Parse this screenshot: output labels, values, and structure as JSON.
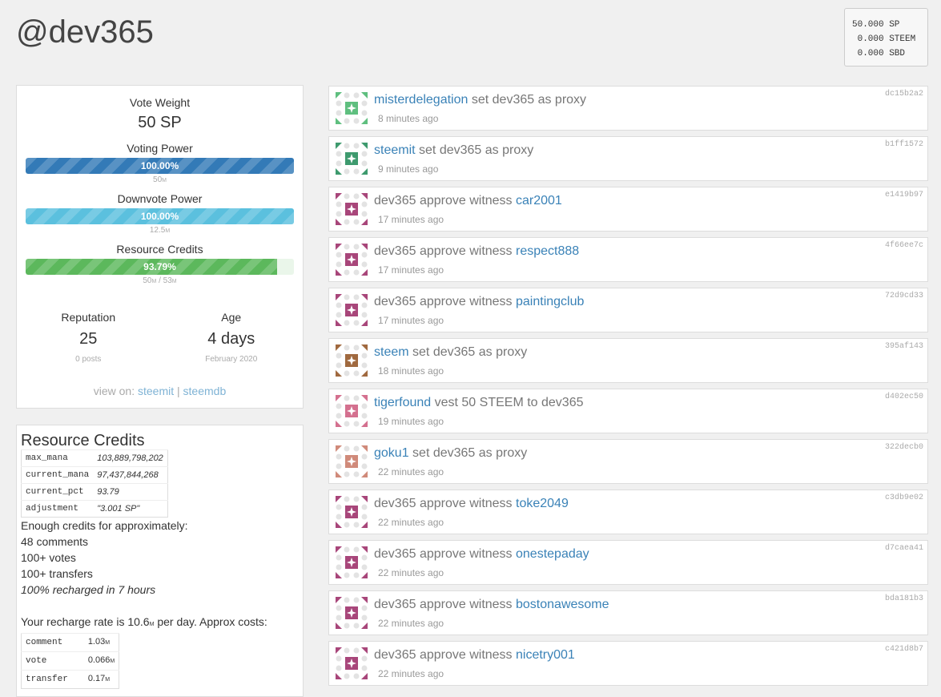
{
  "header": {
    "title": "@dev365",
    "balances": [
      "50.000 SP",
      " 0.000 STEEM",
      " 0.000 SBD"
    ]
  },
  "account": {
    "vote_weight": {
      "label": "Vote Weight",
      "value": "50 SP"
    },
    "bars": [
      {
        "label": "Voting Power",
        "value": 100,
        "value_label": "100.00%",
        "color": "#337ab7",
        "note": [
          "50",
          "M"
        ]
      },
      {
        "label": "Downvote Power",
        "value": 100,
        "value_label": "100.00%",
        "color": "#5bc0de",
        "note": [
          "12.5",
          "M"
        ]
      },
      {
        "label": "Resource Credits",
        "value": 93.79,
        "value_label": "93.79%",
        "color": "#5cb85c",
        "note": [
          "50",
          "M",
          " / 53",
          "M"
        ]
      }
    ],
    "stats": [
      {
        "label": "Reputation",
        "value": "25",
        "sub": "0 posts"
      },
      {
        "label": "Age",
        "value": "4 days",
        "sub": "February 2020"
      }
    ],
    "view_on": {
      "prefix": "view on:",
      "links": [
        "steemit",
        "steemdb"
      ],
      "separator": "|"
    }
  },
  "resource_credits": {
    "title": "Resource Credits",
    "table": [
      [
        "max_mana",
        "103,889,798,202"
      ],
      [
        "current_mana",
        "97,437,844,268"
      ],
      [
        "current_pct",
        "93.79"
      ],
      [
        "adjustment",
        "\"3.001 SP\""
      ]
    ],
    "intro": "Enough credits for approximately:",
    "lines": [
      "48 comments",
      "100+ votes",
      "100+ transfers"
    ],
    "recharge": "100% recharged in 7 hours",
    "rate": [
      "Your recharge rate is 10.6",
      "M",
      " per day. Approx costs:"
    ],
    "costs": [
      [
        "comment",
        "1.03",
        "M"
      ],
      [
        "vote",
        "0.066",
        "M"
      ],
      [
        "transfer",
        "0.17",
        "M"
      ]
    ]
  },
  "feed": [
    {
      "parts": [
        {
          "text": "misterdelegation",
          "link": true
        },
        {
          "text": " set dev365 as proxy"
        }
      ],
      "time": "8 minutes ago",
      "hash": "dc15b2a2",
      "icon_color": "#5fbf7f"
    },
    {
      "parts": [
        {
          "text": "steemit",
          "link": true
        },
        {
          "text": " set dev365 as proxy"
        }
      ],
      "time": "9 minutes ago",
      "hash": "b1ff1572",
      "icon_color": "#3e9a6e"
    },
    {
      "parts": [
        {
          "text": "dev365 approve witness "
        },
        {
          "text": "car2001",
          "link": true
        }
      ],
      "time": "17 minutes ago",
      "hash": "e1419b97",
      "icon_color": "#a8467a"
    },
    {
      "parts": [
        {
          "text": "dev365 approve witness "
        },
        {
          "text": "respect888",
          "link": true
        }
      ],
      "time": "17 minutes ago",
      "hash": "4f66ee7c",
      "icon_color": "#a8467a"
    },
    {
      "parts": [
        {
          "text": "dev365 approve witness "
        },
        {
          "text": "paintingclub",
          "link": true
        }
      ],
      "time": "17 minutes ago",
      "hash": "72d9cd33",
      "icon_color": "#a8467a"
    },
    {
      "parts": [
        {
          "text": "steem",
          "link": true
        },
        {
          "text": " set dev365 as proxy"
        }
      ],
      "time": "18 minutes ago",
      "hash": "395af143",
      "icon_color": "#a0693f"
    },
    {
      "parts": [
        {
          "text": "tigerfound",
          "link": true
        },
        {
          "text": " vest 50 STEEM to dev365"
        }
      ],
      "time": "19 minutes ago",
      "hash": "d402ec50",
      "icon_color": "#d4708f"
    },
    {
      "parts": [
        {
          "text": "goku1",
          "link": true
        },
        {
          "text": " set dev365 as proxy"
        }
      ],
      "time": "22 minutes ago",
      "hash": "322decb0",
      "icon_color": "#d08a7a"
    },
    {
      "parts": [
        {
          "text": "dev365 approve witness "
        },
        {
          "text": "toke2049",
          "link": true
        }
      ],
      "time": "22 minutes ago",
      "hash": "c3db9e02",
      "icon_color": "#a8467a"
    },
    {
      "parts": [
        {
          "text": "dev365 approve witness "
        },
        {
          "text": "onestepaday",
          "link": true
        }
      ],
      "time": "22 minutes ago",
      "hash": "d7caea41",
      "icon_color": "#a8467a"
    },
    {
      "parts": [
        {
          "text": "dev365 approve witness "
        },
        {
          "text": "bostonawesome",
          "link": true
        }
      ],
      "time": "22 minutes ago",
      "hash": "bda181b3",
      "icon_color": "#a8467a"
    },
    {
      "parts": [
        {
          "text": "dev365 approve witness "
        },
        {
          "text": "nicetry001",
          "link": true
        }
      ],
      "time": "22 minutes ago",
      "hash": "c421d8b7",
      "icon_color": "#a8467a"
    }
  ]
}
